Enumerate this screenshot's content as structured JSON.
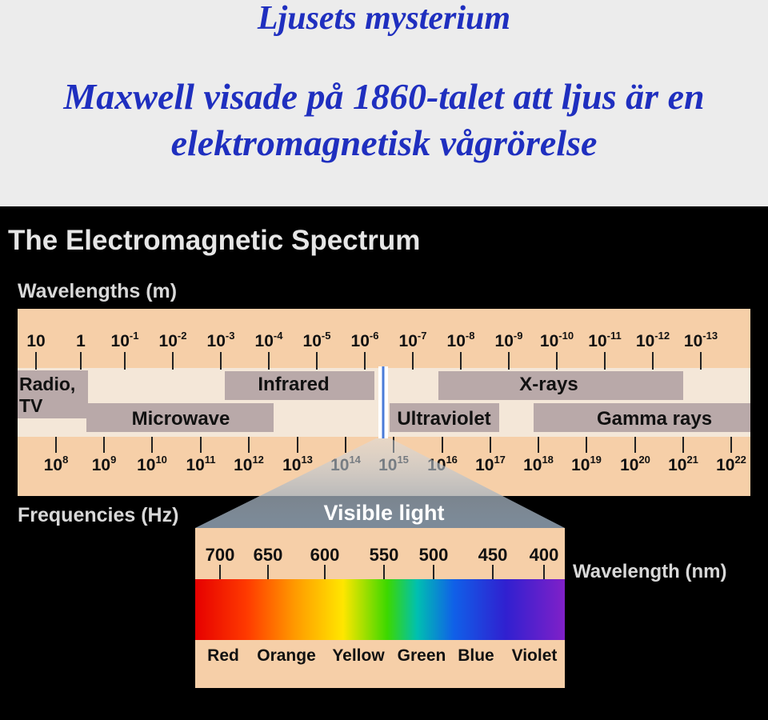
{
  "slide": {
    "title": "Ljusets mysterium",
    "subtitle": "Maxwell visade på 1860-talet att ljus är en elektromagnetisk vågrörelse"
  },
  "figure": {
    "title": "The Electromagnetic Spectrum",
    "wavelength_axis_label": "Wavelengths (m)",
    "wavelength_ticks": [
      {
        "base": "10",
        "exp": ""
      },
      {
        "base": "1",
        "exp": ""
      },
      {
        "base": "10",
        "exp": "-1"
      },
      {
        "base": "10",
        "exp": "-2"
      },
      {
        "base": "10",
        "exp": "-3"
      },
      {
        "base": "10",
        "exp": "-4"
      },
      {
        "base": "10",
        "exp": "-5"
      },
      {
        "base": "10",
        "exp": "-6"
      },
      {
        "base": "10",
        "exp": "-7"
      },
      {
        "base": "10",
        "exp": "-8"
      },
      {
        "base": "10",
        "exp": "-9"
      },
      {
        "base": "10",
        "exp": "-10"
      },
      {
        "base": "10",
        "exp": "-11"
      },
      {
        "base": "10",
        "exp": "-12"
      },
      {
        "base": "10",
        "exp": "-13"
      }
    ],
    "frequency_axis_label": "Frequencies (Hz)",
    "frequency_ticks": [
      {
        "base": "10",
        "exp": "8"
      },
      {
        "base": "10",
        "exp": "9"
      },
      {
        "base": "10",
        "exp": "10"
      },
      {
        "base": "10",
        "exp": "11"
      },
      {
        "base": "10",
        "exp": "12"
      },
      {
        "base": "10",
        "exp": "13"
      },
      {
        "base": "10",
        "exp": "14"
      },
      {
        "base": "10",
        "exp": "15"
      },
      {
        "base": "10",
        "exp": "16"
      },
      {
        "base": "10",
        "exp": "17"
      },
      {
        "base": "10",
        "exp": "18"
      },
      {
        "base": "10",
        "exp": "19"
      },
      {
        "base": "10",
        "exp": "20"
      },
      {
        "base": "10",
        "exp": "21"
      },
      {
        "base": "10",
        "exp": "22"
      }
    ],
    "bands": {
      "radio": [
        "Radio,",
        "TV"
      ],
      "microwave": "Microwave",
      "infrared": "Infrared",
      "ultraviolet": "Ultraviolet",
      "xrays": "X-rays",
      "gamma": "Gamma rays"
    },
    "visible": {
      "title": "Visible light",
      "wavelength_ticks": [
        "700",
        "650",
        "600",
        "550",
        "500",
        "450",
        "400"
      ],
      "wavelength_label": "Wavelength (nm)",
      "colors": [
        "Red",
        "Orange",
        "Yellow",
        "Green",
        "Blue",
        "Violet"
      ]
    }
  },
  "colors": {
    "slide_background": "#ececec",
    "slide_text": "#1f2fbf",
    "figure_background": "#000000",
    "axis_band": "#f6cfa8",
    "region_band": "#f4e7d8",
    "band_box": "#b9a9a9"
  }
}
